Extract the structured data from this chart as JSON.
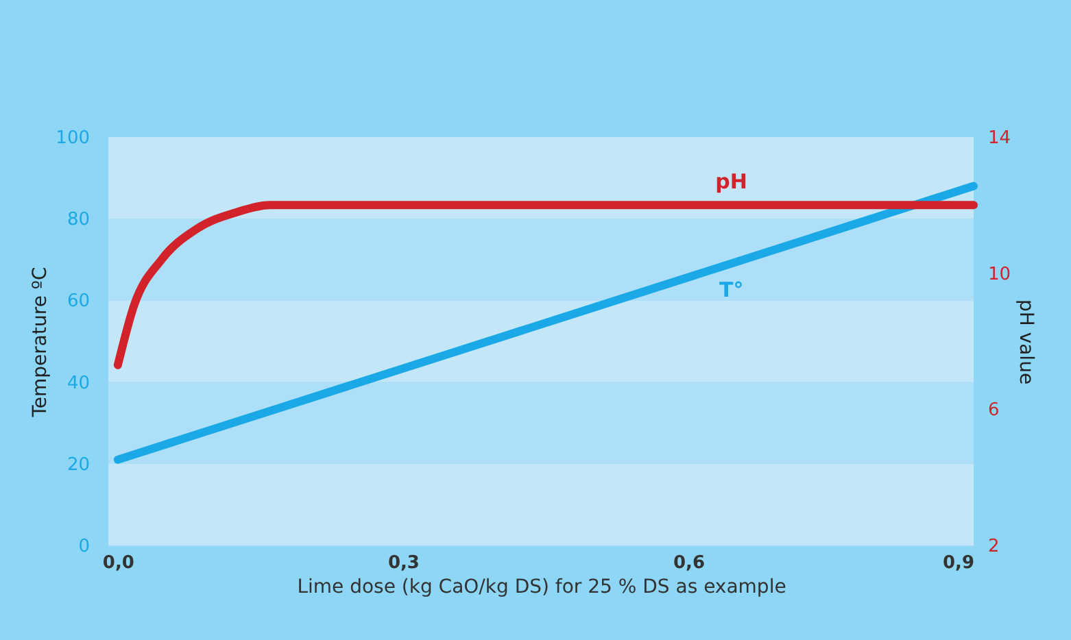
{
  "chart_data": {
    "type": "line",
    "xlabel": "Lime dose (kg CaO/kg DS) for 25 % DS as example",
    "ylabel": "Temperature ºC",
    "y2label": "pH value",
    "xlim": [
      -0.01,
      0.9
    ],
    "xticks": [
      {
        "value": 0,
        "label": "0,0"
      },
      {
        "value": 0.3,
        "label": "0,3"
      },
      {
        "value": 0.6,
        "label": "0,6"
      },
      {
        "value": 0.9,
        "label": "0,9"
      }
    ],
    "ylim": [
      0,
      100
    ],
    "yticks": [
      0,
      20,
      40,
      60,
      80,
      100
    ],
    "y2lim": [
      2,
      14
    ],
    "y2ticks": [
      2,
      6,
      10,
      14
    ],
    "grid": false,
    "line_style": "solid",
    "marker": "none",
    "bands": [
      {
        "axis": "y",
        "from": 0,
        "to": 20,
        "color": "#c3e7f8"
      },
      {
        "axis": "y",
        "from": 20,
        "to": 40,
        "color": "#ade0f8"
      },
      {
        "axis": "y",
        "from": 40,
        "to": 60,
        "color": "#c3e7f8"
      },
      {
        "axis": "y",
        "from": 60,
        "to": 80,
        "color": "#ade0f8"
      },
      {
        "axis": "y",
        "from": 80,
        "to": 100,
        "color": "#c3e7f8"
      }
    ],
    "series": [
      {
        "name": "pH",
        "color": "#d2232a",
        "axis": "y2",
        "x": [
          0,
          0.017,
          0.046,
          0.083,
          0.126,
          0.16,
          0.9
        ],
        "values": [
          7.3,
          9.05,
          10.4,
          11.3,
          11.8,
          12,
          12
        ]
      },
      {
        "name": "T°",
        "color": "#1aa9e6",
        "axis": "y",
        "x": [
          0,
          0.9
        ],
        "values": [
          21,
          88
        ]
      }
    ]
  }
}
